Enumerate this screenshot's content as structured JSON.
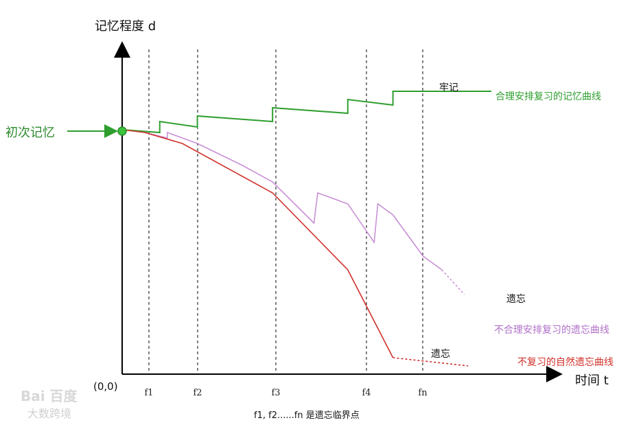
{
  "chart_data": {
    "type": "line",
    "ylabel": "记忆程度 d",
    "xlabel": "时间 t",
    "origin_label": "(0,0)",
    "x_ticks": [
      "f1",
      "f2",
      "f3",
      "f4",
      "fn"
    ],
    "footnote": "f1, f2......fn 是遗忘临界点",
    "initial_memory_label": "初次记忆",
    "series": [
      {
        "name": "合理安排复习的记忆曲线",
        "color": "#2e9e2e",
        "end_label": "牢记",
        "points": [
          [
            0,
            0.89
          ],
          [
            0.5,
            0.88
          ],
          [
            0.5,
            0.92
          ],
          [
            1,
            0.9
          ],
          [
            1,
            0.94
          ],
          [
            2,
            0.92
          ],
          [
            2,
            0.97
          ],
          [
            3,
            0.95
          ],
          [
            3,
            1.0
          ],
          [
            3.6,
            0.98
          ],
          [
            3.6,
            1.03
          ],
          [
            4.6,
            1.03
          ]
        ]
      },
      {
        "name": "不合理安排复习的遗忘曲线",
        "color": "#c890d6",
        "end_label": "遗忘",
        "points": [
          [
            0.3,
            0.88
          ],
          [
            0.6,
            0.86
          ],
          [
            0.6,
            0.88
          ],
          [
            1,
            0.84
          ],
          [
            1.6,
            0.76
          ],
          [
            2,
            0.7
          ],
          [
            2.55,
            0.55
          ],
          [
            2.6,
            0.66
          ],
          [
            3,
            0.62
          ],
          [
            3.35,
            0.48
          ],
          [
            3.4,
            0.62
          ],
          [
            3.6,
            0.58
          ],
          [
            4.0,
            0.43
          ],
          [
            4.25,
            0.38
          ]
        ],
        "dashed_tail": [
          [
            4.25,
            0.38
          ],
          [
            4.55,
            0.29
          ]
        ]
      },
      {
        "name": "不复习的自然遗忘曲线",
        "color": "#d0302a",
        "end_label": "遗忘",
        "points": [
          [
            0,
            0.89
          ],
          [
            0.3,
            0.88
          ],
          [
            0.8,
            0.84
          ],
          [
            2,
            0.66
          ],
          [
            3,
            0.38
          ],
          [
            3.6,
            0.06
          ]
        ],
        "dashed_tail": [
          [
            3.6,
            0.06
          ],
          [
            4.6,
            0.03
          ]
        ]
      }
    ],
    "watermark": {
      "line1": "Bai 百度",
      "line2": "大数跨境"
    }
  }
}
